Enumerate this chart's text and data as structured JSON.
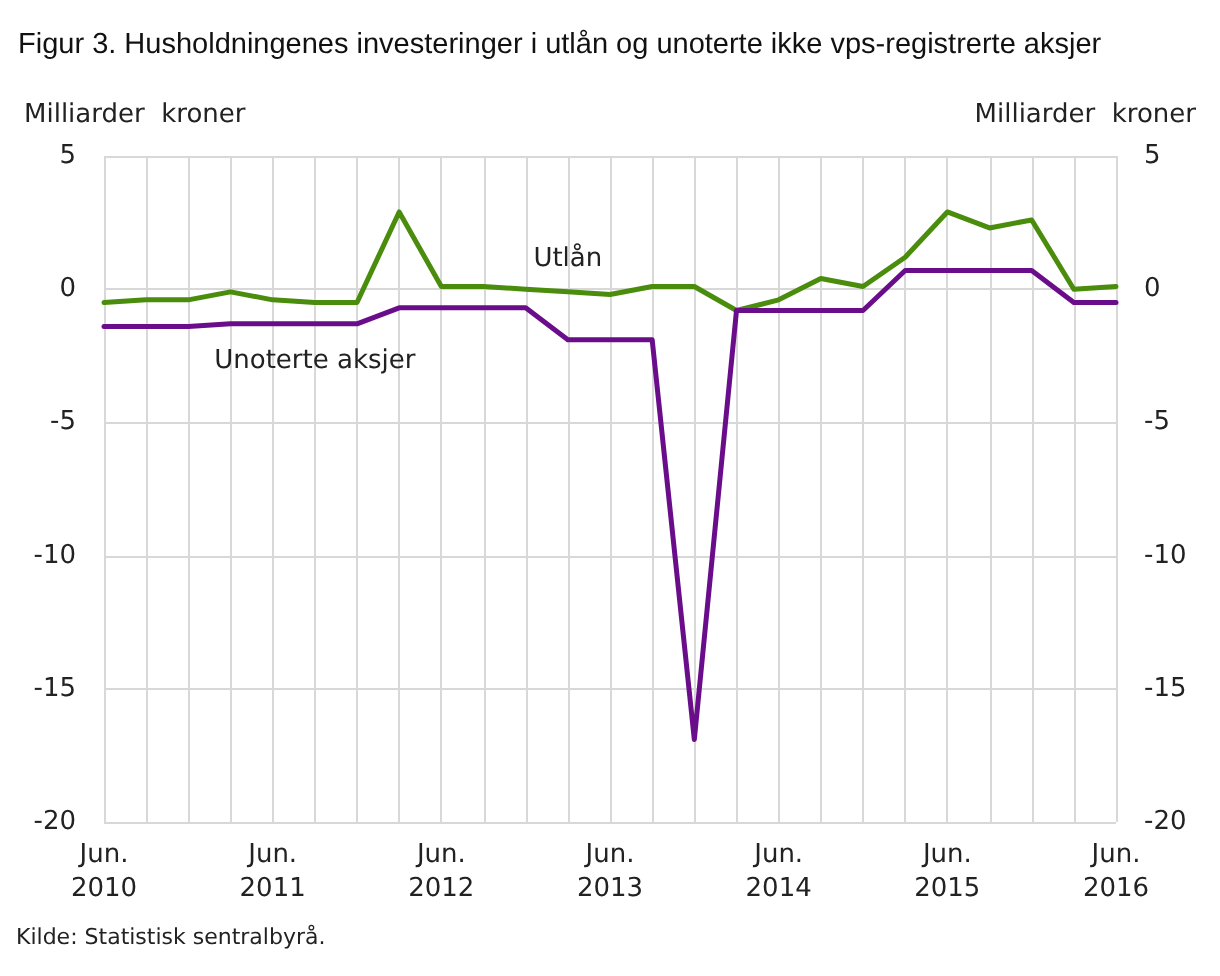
{
  "chart_data": {
    "type": "line",
    "title": "Figur 3. Husholdningenes investeringer i utlån og unoterte ikke vps-registrerte aksjer",
    "ylabel": "Milliarder  kroner",
    "y2label": "Milliarder  kroner",
    "annotations": [
      "Kilde: Statistisk sentralbyrå."
    ],
    "categories": [
      "Jun.\n2010",
      null,
      null,
      null,
      "Jun.\n2011",
      null,
      null,
      null,
      "Jun.\n2012",
      null,
      null,
      null,
      "Jun.\n2013",
      null,
      null,
      null,
      "Jun.\n2014",
      null,
      null,
      null,
      "Jun.\n2015",
      null,
      null,
      null,
      "Jun.\n2016"
    ],
    "series": [
      {
        "name": "Utlån",
        "color": "#4a8c0c",
        "values": [
          -0.5,
          -0.4,
          -0.4,
          -0.1,
          -0.4,
          -0.5,
          -0.5,
          2.9,
          0.1,
          0.1,
          0,
          -0.1,
          -0.2,
          0.1,
          0.1,
          -0.8,
          -0.4,
          0.4,
          0.1,
          1.2,
          2.9,
          2.3,
          2.6,
          0,
          0.1
        ]
      },
      {
        "name": "Unoterte aksjer",
        "color": "#6a0d8a",
        "values": [
          -1.4,
          -1.4,
          -1.4,
          -1.3,
          -1.3,
          -1.3,
          -1.3,
          -0.7,
          -0.7,
          -0.7,
          -0.7,
          -1.9,
          -1.9,
          -1.9,
          -16.9,
          -0.8,
          -0.8,
          -0.8,
          -0.8,
          0.7,
          0.7,
          0.7,
          0.7,
          -0.5,
          -0.5
        ]
      }
    ],
    "ylim": [
      -20,
      5
    ],
    "yticks": [
      -20,
      -15,
      -10,
      -5,
      0,
      5
    ],
    "y2lim": [
      -20,
      5
    ],
    "y2ticks": [
      -20,
      -15,
      -10,
      -5,
      0,
      5
    ],
    "grid": true,
    "legend": false,
    "marker": "none",
    "line_style": "solid"
  }
}
